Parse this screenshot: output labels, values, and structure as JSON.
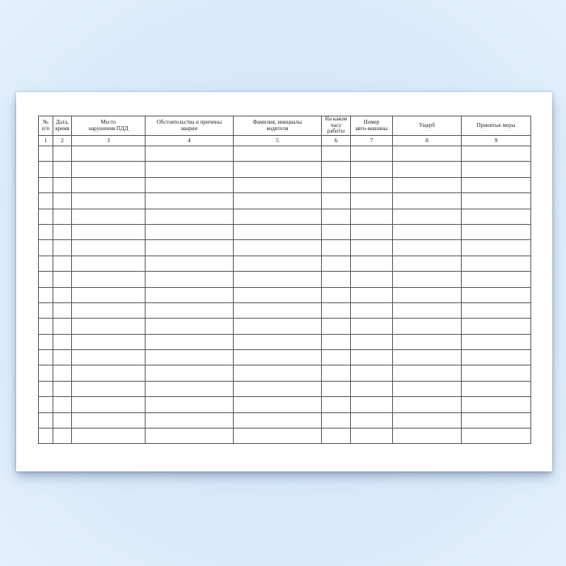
{
  "theme": {
    "background_center_color": "#d2e4f8",
    "background_corner_color": "#e3f0fd",
    "sheet_color": "#ffffff",
    "grid_line_color": "#5c5c5c",
    "outer_border_color": "#3e3e3e",
    "text_color": "#1c1c1c"
  },
  "table": {
    "columns": [
      {
        "header": "№\nп/п",
        "number": "1"
      },
      {
        "header": "Дата,\nвремя",
        "number": "2"
      },
      {
        "header": "Место\nнарушения ПДД",
        "number": "3"
      },
      {
        "header": "Обстоятельства и причины\nаварии",
        "number": "4"
      },
      {
        "header": "Фамилия, инициалы\nводителя",
        "number": "5"
      },
      {
        "header": "На каком\nчасу\nработы",
        "number": "6"
      },
      {
        "header": "Номер\nавто-машины",
        "number": "7"
      },
      {
        "header": "Ущерб",
        "number": "8"
      },
      {
        "header": "Принятые  меры",
        "number": "9"
      }
    ],
    "data_row_count": 19
  }
}
